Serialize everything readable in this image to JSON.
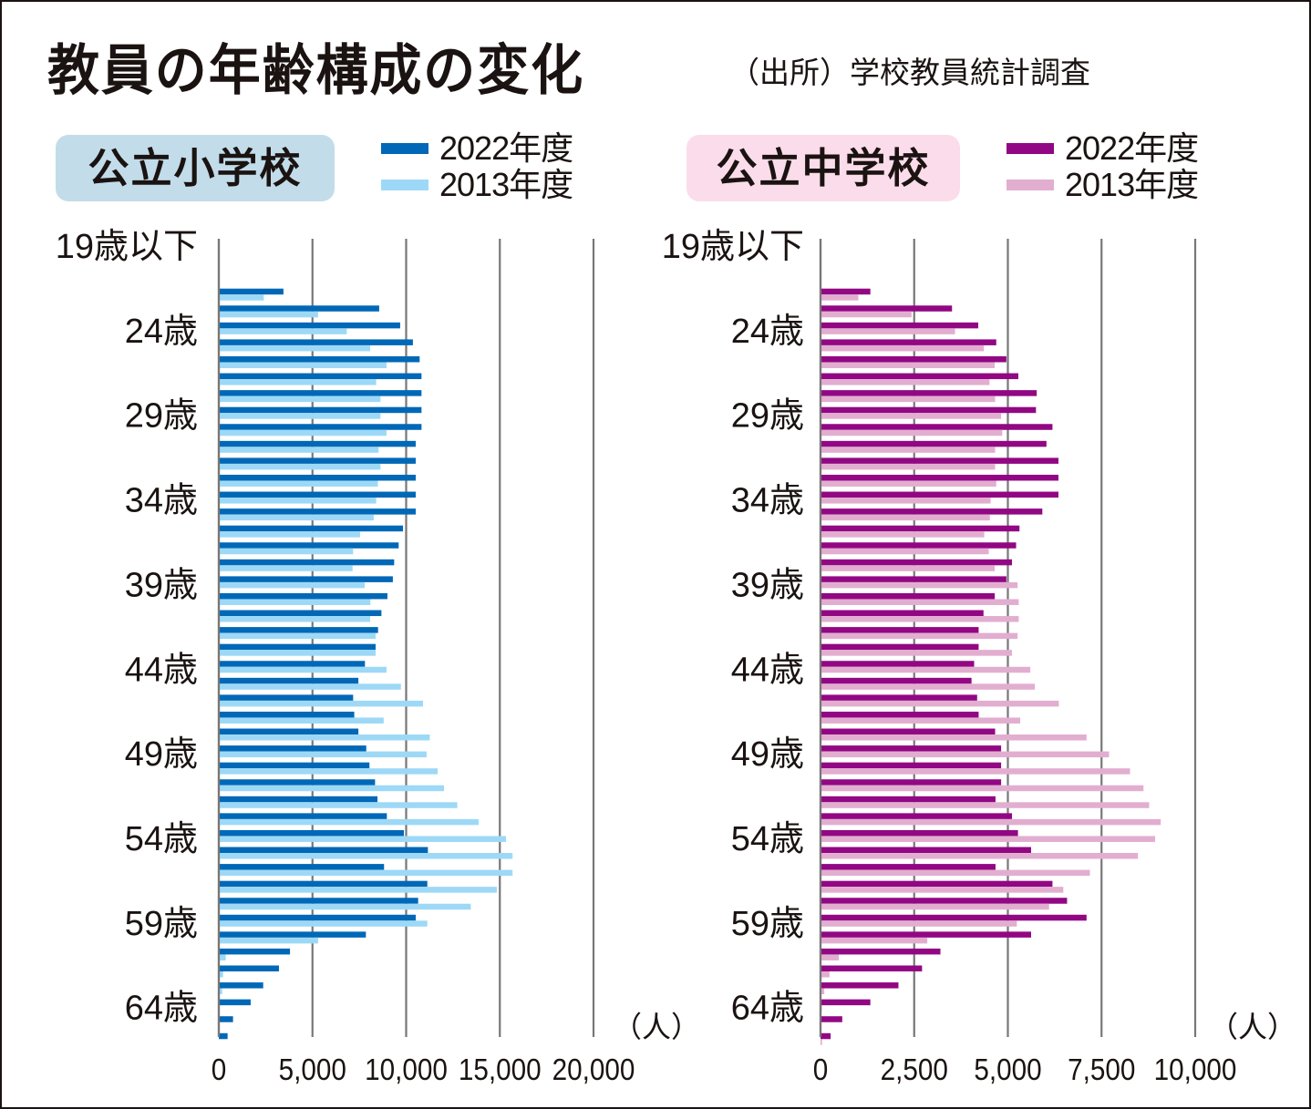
{
  "title": "教員の年齢構成の変化",
  "source": "（出所）学校教員統計調査",
  "colors": {
    "elem_2022": "#0068b7",
    "elem_2013": "#9dd9f6",
    "mid_2022": "#920783",
    "mid_2013": "#e2aed0",
    "elem_box": "#c2dcea",
    "mid_box": "#fbdcea",
    "grid": "#777777"
  },
  "chart_data": [
    {
      "type": "bar",
      "orientation": "horizontal",
      "title": "公立小学校",
      "unit_label": "（人）",
      "y_tick_labels": [
        "19歳以下",
        "24歳",
        "29歳",
        "34歳",
        "39歳",
        "44歳",
        "49歳",
        "54歳",
        "59歳",
        "64歳"
      ],
      "x_tick_labels": [
        "0",
        "5,000",
        "10,000",
        "15,000",
        "20,000"
      ],
      "xlim": [
        0,
        20000
      ],
      "x_ticks": [
        0,
        5000,
        10000,
        15000,
        20000
      ],
      "grid": true,
      "legend": "top-right",
      "categories": [
        "22",
        "23",
        "24",
        "25",
        "26",
        "27",
        "28",
        "29",
        "30",
        "31",
        "32",
        "33",
        "34",
        "35",
        "36",
        "37",
        "38",
        "39",
        "40",
        "41",
        "42",
        "43",
        "44",
        "45",
        "46",
        "47",
        "48",
        "49",
        "50",
        "51",
        "52",
        "53",
        "54",
        "55",
        "56",
        "57",
        "58",
        "59",
        "60",
        "61",
        "62",
        "63",
        "64",
        "65",
        "66"
      ],
      "series": [
        {
          "name": "2022年度",
          "values": [
            3450,
            8560,
            9680,
            10360,
            10720,
            10820,
            10820,
            10820,
            10820,
            10510,
            10510,
            10510,
            10510,
            10510,
            9830,
            9600,
            9360,
            9290,
            9000,
            8680,
            8500,
            8370,
            7800,
            7450,
            7170,
            7230,
            7450,
            7870,
            8040,
            8340,
            8470,
            8970,
            9880,
            11160,
            8820,
            11130,
            10640,
            10510,
            7850,
            3800,
            3210,
            2370,
            1700,
            760,
            470
          ]
        },
        {
          "name": "2013年度",
          "values": [
            2400,
            5300,
            6830,
            8080,
            8950,
            8400,
            8630,
            8630,
            8950,
            8530,
            8630,
            8490,
            8400,
            8270,
            7540,
            7170,
            7140,
            7790,
            8090,
            8080,
            8370,
            8370,
            8950,
            9720,
            10900,
            8800,
            11260,
            11090,
            11680,
            12020,
            12730,
            13870,
            15330,
            15680,
            15680,
            14840,
            13450,
            11130,
            5300,
            370,
            230,
            180,
            50,
            0,
            0
          ]
        }
      ]
    },
    {
      "type": "bar",
      "orientation": "horizontal",
      "title": "公立中学校",
      "unit_label": "（人）",
      "y_tick_labels": [
        "19歳以下",
        "24歳",
        "29歳",
        "34歳",
        "39歳",
        "44歳",
        "49歳",
        "54歳",
        "59歳",
        "64歳"
      ],
      "x_tick_labels": [
        "0",
        "2,500",
        "5,000",
        "7,500",
        "10,000"
      ],
      "xlim": [
        0,
        10000
      ],
      "x_ticks": [
        0,
        2500,
        5000,
        7500,
        10000
      ],
      "grid": true,
      "legend": "top-right",
      "categories": [
        "22",
        "23",
        "24",
        "25",
        "26",
        "27",
        "28",
        "29",
        "30",
        "31",
        "32",
        "33",
        "34",
        "35",
        "36",
        "37",
        "38",
        "39",
        "40",
        "41",
        "42",
        "43",
        "44",
        "45",
        "46",
        "47",
        "48",
        "49",
        "50",
        "51",
        "52",
        "53",
        "54",
        "55",
        "56",
        "57",
        "58",
        "59",
        "60",
        "61",
        "62",
        "63",
        "64",
        "65",
        "66"
      ],
      "series": [
        {
          "name": "2022年度",
          "values": [
            1330,
            3510,
            4210,
            4690,
            4960,
            5280,
            5770,
            5750,
            6190,
            6030,
            6350,
            6350,
            6350,
            5920,
            5310,
            5220,
            5110,
            4960,
            4650,
            4350,
            4220,
            4220,
            4100,
            4030,
            4180,
            4220,
            4660,
            4820,
            4820,
            4820,
            4670,
            5110,
            5270,
            5620,
            4670,
            6190,
            6580,
            7100,
            5620,
            3200,
            2710,
            2080,
            1330,
            580,
            270
          ]
        },
        {
          "name": "2013年度",
          "values": [
            1010,
            2430,
            3590,
            4360,
            4650,
            4510,
            4660,
            4820,
            4850,
            4660,
            4660,
            4690,
            4540,
            4520,
            4370,
            4490,
            4650,
            5260,
            5290,
            5290,
            5260,
            5110,
            5600,
            5720,
            6360,
            5330,
            7100,
            7700,
            8260,
            8620,
            8770,
            9080,
            8930,
            8470,
            7190,
            6480,
            6100,
            5240,
            2850,
            490,
            240,
            100,
            40,
            20,
            40
          ]
        }
      ]
    }
  ]
}
